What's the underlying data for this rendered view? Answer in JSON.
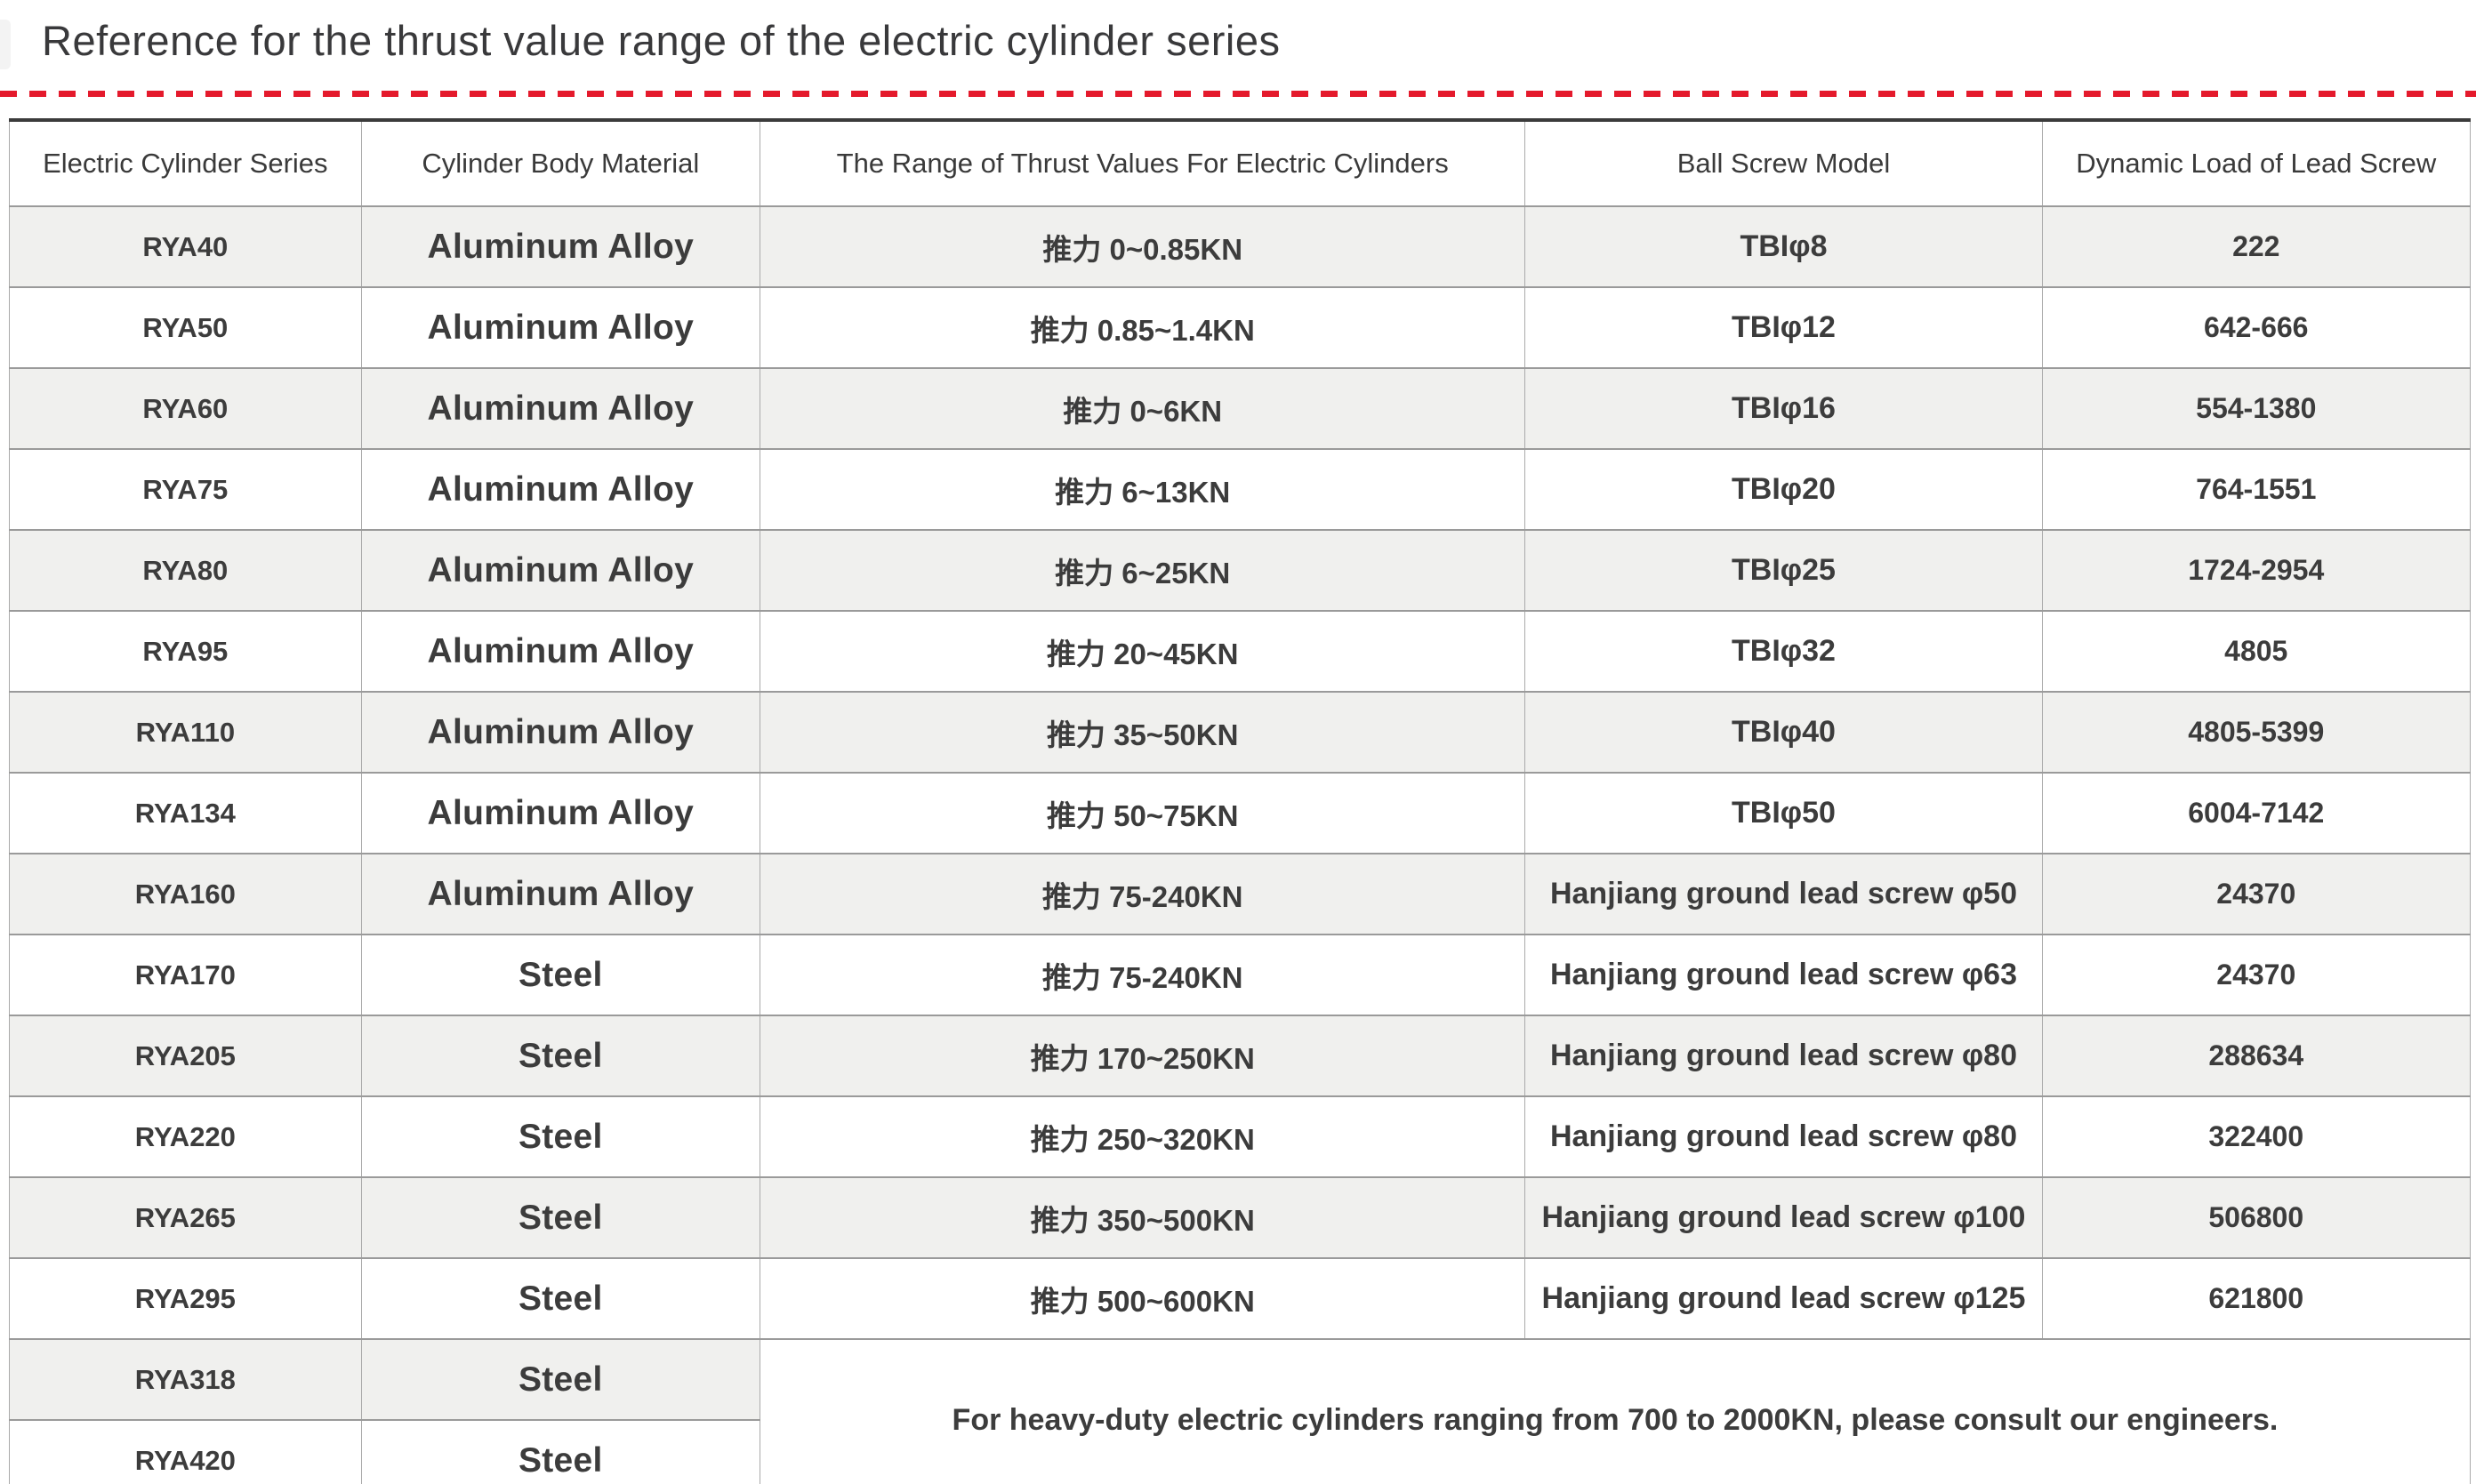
{
  "page": {
    "title": "Reference for the thrust value range of the electric cylinder series"
  },
  "divider": {
    "style": "dashed",
    "color": "#e41a2c"
  },
  "colors": {
    "accent_red": "#e41a2c",
    "row_stripe": "#f0f0ee",
    "border_gray": "#a9a9a9",
    "table_top_border": "#3b3b3b",
    "text": "#3c3c3c"
  },
  "table": {
    "columns": [
      "Electric Cylinder Series",
      "Cylinder Body Material",
      "The Range of Thrust Values For Electric Cylinders",
      "Ball Screw Model",
      "Dynamic Load of Lead Screw"
    ],
    "rows": [
      {
        "series": "RYA40",
        "material": "Aluminum Alloy",
        "thrust": "推力 0~0.85KN",
        "ball_screw": "TBIφ8",
        "dynamic_load": "222"
      },
      {
        "series": "RYA50",
        "material": "Aluminum Alloy",
        "thrust": "推力 0.85~1.4KN",
        "ball_screw": "TBIφ12",
        "dynamic_load": "642-666"
      },
      {
        "series": "RYA60",
        "material": "Aluminum Alloy",
        "thrust": "推力 0~6KN",
        "ball_screw": "TBIφ16",
        "dynamic_load": "554-1380"
      },
      {
        "series": "RYA75",
        "material": "Aluminum Alloy",
        "thrust": "推力 6~13KN",
        "ball_screw": "TBIφ20",
        "dynamic_load": "764-1551"
      },
      {
        "series": "RYA80",
        "material": "Aluminum Alloy",
        "thrust": "推力 6~25KN",
        "ball_screw": "TBIφ25",
        "dynamic_load": "1724-2954"
      },
      {
        "series": "RYA95",
        "material": "Aluminum Alloy",
        "thrust": "推力 20~45KN",
        "ball_screw": "TBIφ32",
        "dynamic_load": "4805"
      },
      {
        "series": "RYA110",
        "material": "Aluminum Alloy",
        "thrust": "推力 35~50KN",
        "ball_screw": "TBIφ40",
        "dynamic_load": "4805-5399"
      },
      {
        "series": "RYA134",
        "material": "Aluminum Alloy",
        "thrust": "推力 50~75KN",
        "ball_screw": "TBIφ50",
        "dynamic_load": "6004-7142"
      },
      {
        "series": "RYA160",
        "material": "Aluminum Alloy",
        "thrust": "推力 75-240KN",
        "ball_screw": "Hanjiang ground lead screw φ50",
        "dynamic_load": "24370"
      },
      {
        "series": "RYA170",
        "material": "Steel",
        "thrust": "推力 75-240KN",
        "ball_screw": "Hanjiang ground lead screw φ63",
        "dynamic_load": "24370"
      },
      {
        "series": "RYA205",
        "material": "Steel",
        "thrust": "推力 170~250KN",
        "ball_screw": "Hanjiang ground lead screw φ80",
        "dynamic_load": "288634"
      },
      {
        "series": "RYA220",
        "material": "Steel",
        "thrust": "推力 250~320KN",
        "ball_screw": "Hanjiang ground lead screw φ80",
        "dynamic_load": "322400"
      },
      {
        "series": "RYA265",
        "material": "Steel",
        "thrust": "推力 350~500KN",
        "ball_screw": "Hanjiang ground lead screw φ100",
        "dynamic_load": "506800"
      },
      {
        "series": "RYA295",
        "material": "Steel",
        "thrust": "推力 500~600KN",
        "ball_screw": "Hanjiang ground lead screw φ125",
        "dynamic_load": "621800"
      },
      {
        "series": "RYA318",
        "material": "Steel"
      },
      {
        "series": "RYA420",
        "material": "Steel"
      }
    ],
    "note": "For heavy-duty electric cylinders ranging from 700 to 2000KN, please consult our engineers."
  }
}
